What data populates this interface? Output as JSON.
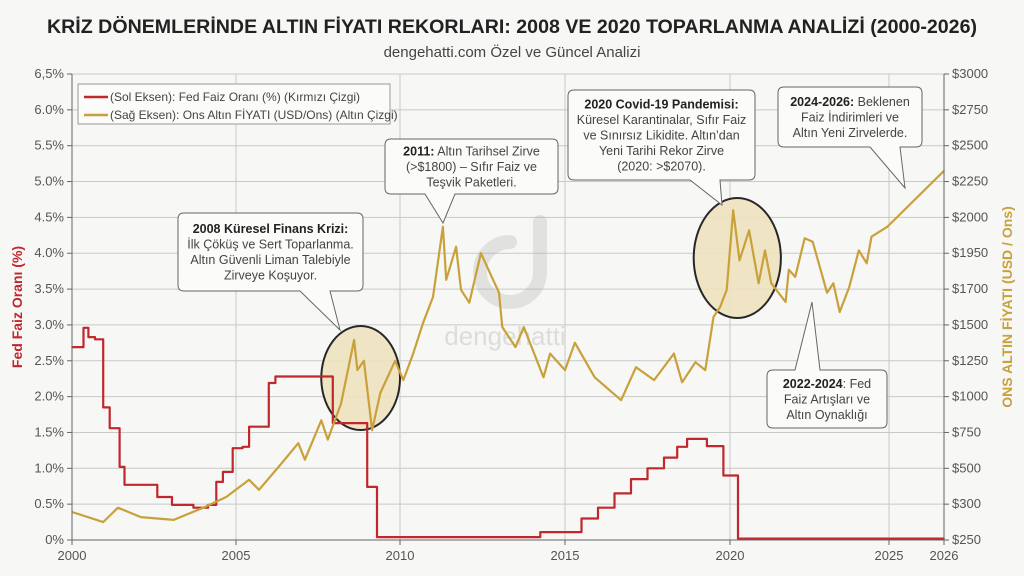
{
  "chart_data": {
    "type": "line",
    "title": "KRİZ DÖNEMLERİNDE ALTIN FİYATI REKORLARI: 2008 VE 2020 TOPARLANMA ANALİZİ (2000-2026)",
    "subtitle": "dengehatti.com Özel ve Güncel Analizi",
    "xlim": [
      2000,
      2026
    ],
    "x_ticks": [
      "2000",
      "2005",
      "2010",
      "2015",
      "2020",
      "2025",
      "2026"
    ],
    "y_left": {
      "label": "Fed Faiz Oranı (%)",
      "range": [
        0,
        6.5
      ],
      "ticks": [
        "0%",
        "0.5%",
        "1.0%",
        "1.5%",
        "2.0%",
        "2.5%",
        "3.0%",
        "3.5%",
        "4.0%",
        "4.5%",
        "5.0%",
        "5.5%",
        "6.0%",
        "6,5%"
      ],
      "color": "#c0282d"
    },
    "y_right": {
      "label": "ONS ALTIN FİYATI (USD / Ons)",
      "ticks": [
        "$250",
        "$300",
        "$500",
        "$750",
        "$1000",
        "$1250",
        "$1500",
        "$1700",
        "$1950",
        "$2000",
        "$2250",
        "$2500",
        "$2750",
        "$3000"
      ],
      "tick_values": [
        250,
        300,
        500,
        750,
        1000,
        1250,
        1500,
        1700,
        1950,
        2000,
        2250,
        2500,
        2750,
        3000
      ],
      "scale": "non-linear (evenly spaced labels)",
      "color": "#c9a13b"
    },
    "grid": true,
    "legend_placement": "top-left",
    "series": [
      {
        "name": "(Sol Eksen): Fed Faiz Oranı (%) (Kırmızı Çizgi)",
        "axis": "left",
        "color": "#c0282d",
        "x": [
          2000.0,
          2000.35,
          2000.5,
          2000.7,
          2000.95,
          2001.15,
          2001.45,
          2001.6,
          2002.45,
          2002.6,
          2002.9,
          2003.05,
          2003.45,
          2003.7,
          2004.15,
          2004.4,
          2004.6,
          2004.9,
          2005.2,
          2005.4,
          2006.0,
          2006.2,
          2007.4,
          2007.95,
          2008.7,
          2009.0,
          2009.1,
          2009.3,
          2014.2,
          2014.25,
          2015.1,
          2015.5,
          2016.0,
          2016.5,
          2017.0,
          2017.5,
          2018.0,
          2018.4,
          2018.7,
          2019.15,
          2019.3,
          2019.4,
          2019.8,
          2020.1,
          2020.25,
          2026.0
        ],
        "values": [
          2.69,
          2.96,
          2.83,
          2.8,
          1.85,
          1.56,
          1.02,
          0.77,
          0.77,
          0.6,
          0.6,
          0.49,
          0.49,
          0.45,
          0.49,
          0.81,
          0.95,
          1.28,
          1.3,
          1.58,
          2.19,
          2.28,
          2.28,
          1.63,
          1.63,
          0.74,
          0.74,
          0.04,
          0.04,
          0.11,
          0.11,
          0.3,
          0.45,
          0.65,
          0.85,
          1.0,
          1.15,
          1.3,
          1.41,
          1.41,
          1.31,
          1.31,
          0.9,
          0.9,
          0.02,
          0.02
        ]
      },
      {
        "name": "(Sağ Eksen): Ons Altın FİYATI (USD/Ons) (Altın Çizgi)",
        "axis": "right",
        "color": "#c9a13b",
        "x": [
          2000.0,
          2000.95,
          2001.4,
          2002.1,
          2003.1,
          2004.0,
          2004.7,
          2005.4,
          2005.7,
          2006.3,
          2006.9,
          2007.1,
          2007.6,
          2007.8,
          2008.2,
          2008.6,
          2008.7,
          2008.9,
          2009.15,
          2009.4,
          2009.85,
          2010.1,
          2010.4,
          2010.7,
          2011.0,
          2011.3,
          2011.4,
          2011.7,
          2011.85,
          2012.1,
          2012.45,
          2013.0,
          2013.1,
          2013.5,
          2013.75,
          2014.35,
          2014.55,
          2015.0,
          2015.3,
          2015.9,
          2016.7,
          2017.15,
          2017.7,
          2018.3,
          2018.55,
          2018.95,
          2019.25,
          2019.5,
          2019.7,
          2019.9,
          2020.1,
          2020.3,
          2020.6,
          2020.9,
          2021.1,
          2021.3,
          2021.75,
          2021.85,
          2022.05,
          2022.35,
          2022.6,
          2022.85,
          2023.05,
          2023.25,
          2023.45,
          2023.75,
          2024.05,
          2024.3,
          2024.45,
          2024.95,
          2026.0
        ],
        "values": [
          289,
          275,
          295,
          282,
          278,
          295,
          340,
          436,
          380,
          510,
          675,
          560,
          835,
          700,
          950,
          1395,
          1185,
          1250,
          765,
          1025,
          1250,
          1115,
          1300,
          1512,
          1656,
          1987,
          1765,
          1959,
          1696,
          1624,
          1950,
          1680,
          1485,
          1345,
          1485,
          1135,
          1300,
          1185,
          1375,
          1135,
          975,
          1205,
          1115,
          1300,
          1100,
          1240,
          1185,
          1544,
          1600,
          1696,
          2050,
          1900,
          1982,
          1740,
          1954,
          1740,
          1628,
          1835,
          1785,
          1971,
          1966,
          1835,
          1680,
          1740,
          1572,
          1715,
          1954,
          1880,
          1973,
          1987,
          2325
        ]
      }
    ],
    "highlights": [
      {
        "label": "2008",
        "x": [
          2007.6,
          2010.0
        ]
      },
      {
        "label": "2020",
        "x": [
          2018.9,
          2021.6
        ]
      }
    ],
    "annotations": [
      {
        "id": "2008",
        "lines": [
          [
            {
              "t": "2008 Küresel Finans Krizi:",
              "b": true
            }
          ],
          [
            {
              "t": "İlk Çöküş ve Sert Toparlanma."
            }
          ],
          [
            {
              "t": "Altın Güvenli Liman Talebiyle"
            }
          ],
          [
            {
              "t": "Zirveye Koşuyor."
            }
          ]
        ]
      },
      {
        "id": "2011",
        "lines": [
          [
            {
              "t": "2011:",
              "b": true
            },
            {
              "t": " Altın Tarihsel Zirve"
            }
          ],
          [
            {
              "t": "(>$1800) – Sıfır Faiz ve"
            }
          ],
          [
            {
              "t": "Teşvik Paketleri."
            }
          ]
        ]
      },
      {
        "id": "2020",
        "lines": [
          [
            {
              "t": "2020 Covid-19 Pandemisi:",
              "b": true
            }
          ],
          [
            {
              "t": "Küresel Karantinalar, Sıfır Faiz"
            }
          ],
          [
            {
              "t": "ve Sınırsız Likidite. Altın’dan"
            }
          ],
          [
            {
              "t": "Yeni Tarihi Rekor Zirve"
            }
          ],
          [
            {
              "t": "(2020: >$2070)."
            }
          ]
        ]
      },
      {
        "id": "2024",
        "lines": [
          [
            {
              "t": "2024-2026:",
              "b": true
            },
            {
              "t": " Beklenen"
            }
          ],
          [
            {
              "t": "Faiz İndirimleri ve"
            }
          ],
          [
            {
              "t": "Altın Yeni Zirvelerde."
            }
          ]
        ]
      },
      {
        "id": "2022",
        "lines": [
          [
            {
              "t": "2022-2024",
              "b": true
            },
            {
              "t": ": Fed"
            }
          ],
          [
            {
              "t": "Faiz Artışları ve"
            }
          ],
          [
            {
              "t": "Altın Oynaklığı"
            }
          ]
        ]
      }
    ]
  },
  "watermark": {
    "text": "dengehatti"
  }
}
